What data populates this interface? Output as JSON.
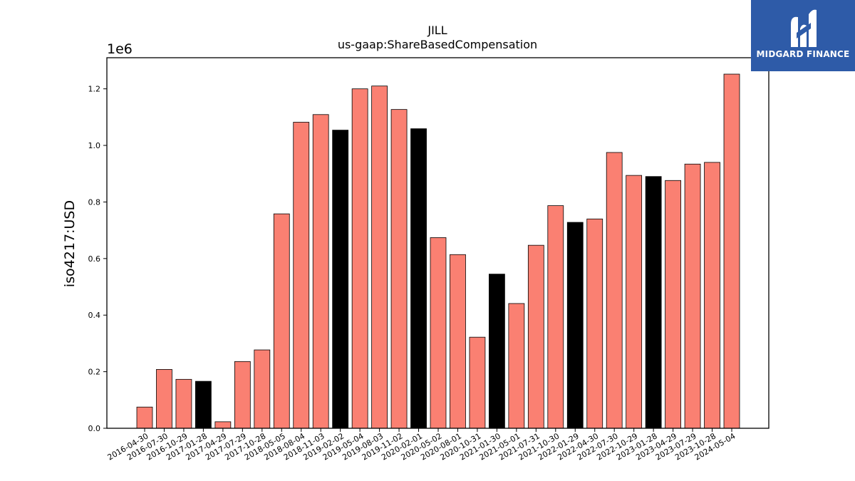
{
  "brand": {
    "name": "MIDGARD FINANCE",
    "bg_color": "#2e5ba8"
  },
  "chart_data": {
    "type": "bar",
    "title": "JILL",
    "subtitle": "us-gaap:ShareBasedCompensation",
    "ylabel": "iso4217:USD",
    "xlabel": "",
    "y_multiplier_label": "1e6",
    "ylim": [
      0,
      1.31
    ],
    "y_ticks": [
      "0.0",
      "0.2",
      "0.4",
      "0.6",
      "0.8",
      "1.0",
      "1.2"
    ],
    "grid": false,
    "colors": {
      "default": "#fa8072",
      "highlight": "#000000"
    },
    "categories": [
      "2016-04-30",
      "2016-07-30",
      "2016-10-29",
      "2017-01-28",
      "2017-04-29",
      "2017-07-29",
      "2017-10-28",
      "2018-05-05",
      "2018-08-04",
      "2018-11-03",
      "2019-02-02",
      "2019-05-04",
      "2019-08-03",
      "2019-11-02",
      "2020-02-01",
      "2020-05-02",
      "2020-08-01",
      "2020-10-31",
      "2021-01-30",
      "2021-05-01",
      "2021-07-31",
      "2021-10-30",
      "2022-01-29",
      "2022-04-30",
      "2022-07-30",
      "2022-10-29",
      "2023-01-28",
      "2023-04-29",
      "2023-07-29",
      "2023-10-28",
      "2024-05-04"
    ],
    "values": [
      0.075,
      0.208,
      0.173,
      0.166,
      0.023,
      0.236,
      0.277,
      0.758,
      1.082,
      1.109,
      1.054,
      1.2,
      1.21,
      1.127,
      1.059,
      0.674,
      0.614,
      0.322,
      0.545,
      0.441,
      0.647,
      0.787,
      0.728,
      0.74,
      0.975,
      0.894,
      0.89,
      0.876,
      0.934,
      0.94,
      1.252
    ],
    "highlighted": [
      false,
      false,
      false,
      true,
      false,
      false,
      false,
      false,
      false,
      false,
      true,
      false,
      false,
      false,
      true,
      false,
      false,
      false,
      true,
      false,
      false,
      false,
      true,
      false,
      false,
      false,
      true,
      false,
      false,
      false,
      false
    ]
  }
}
